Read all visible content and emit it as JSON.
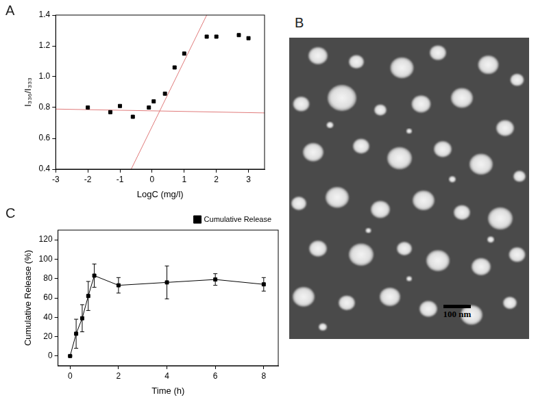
{
  "chart_data": [
    {
      "panel": "A",
      "type": "scatter",
      "xlabel": "LogC (mg/l)",
      "ylabel": "I₃₃₆/I₃₃₃",
      "xlim": [
        -3,
        3.5
      ],
      "xticks": [
        -3,
        -2,
        -1,
        0,
        1,
        2,
        3
      ],
      "ylim": [
        0.4,
        1.4
      ],
      "yticks": [
        0.4,
        0.6,
        0.8,
        {
          "value": 1,
          "label": "1.0"
        },
        1.2,
        1.4
      ],
      "grid": false,
      "series": [
        {
          "type": "scatter",
          "color": "#000000",
          "marker": "square",
          "x": [
            -2,
            -1.3,
            -1,
            -0.6,
            -0.1,
            0.05,
            0.4,
            0.7,
            1,
            1.7,
            2,
            2.7,
            3
          ],
          "values": [
            0.8,
            0.77,
            0.81,
            0.74,
            0.8,
            0.84,
            0.89,
            1.06,
            1.15,
            1.26,
            1.26,
            1.27,
            1.25
          ]
        },
        {
          "type": "line",
          "color": "#e07a7a",
          "line_style": "solid",
          "x": [
            -3,
            3.5
          ],
          "values": [
            0.79,
            0.765
          ]
        },
        {
          "type": "line",
          "color": "#e07a7a",
          "line_style": "solid",
          "x": [
            -0.65,
            1.7
          ],
          "values": [
            0.4,
            1.4
          ]
        }
      ]
    },
    {
      "panel": "C",
      "type": "line",
      "xlabel": "Time (h)",
      "ylabel": "Cumulative Release (%)",
      "xlim": [
        -0.5,
        8.6
      ],
      "xticks": [
        0,
        2,
        4,
        6,
        8
      ],
      "ylim": [
        -10,
        130
      ],
      "yticks": [
        0,
        20,
        40,
        60,
        80,
        100,
        120
      ],
      "grid": false,
      "legend": "upper right",
      "series": [
        {
          "name": "Cumulative Release",
          "color": "#000000",
          "marker": "square",
          "line_style": "solid",
          "x": [
            0,
            0.25,
            0.5,
            0.75,
            1,
            2,
            4,
            6,
            8
          ],
          "values": [
            0,
            23,
            39,
            62,
            83,
            73,
            76,
            79,
            74
          ],
          "errors": [
            0,
            15,
            14,
            15,
            12,
            8,
            17,
            6,
            7
          ]
        }
      ]
    }
  ],
  "image": {
    "panel": "B",
    "scale_bar": "100 nm"
  }
}
